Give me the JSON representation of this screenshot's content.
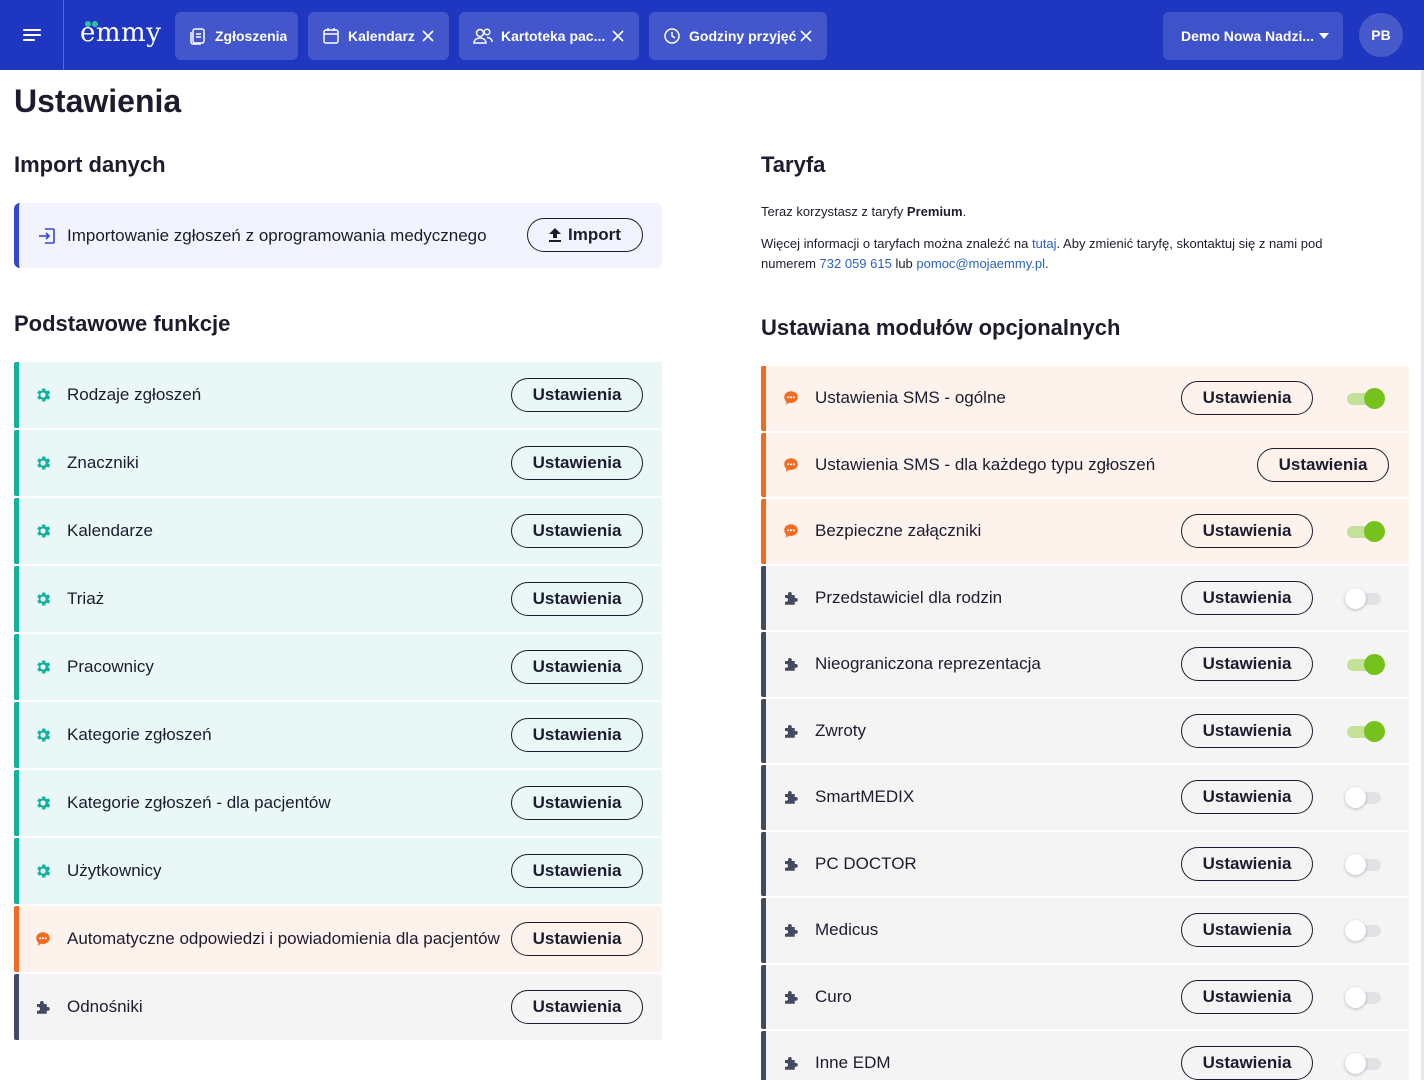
{
  "header": {
    "logo_text": "emmy",
    "tabs": [
      {
        "label": "Zgłoszenia",
        "icon": "document-icon",
        "closable": false
      },
      {
        "label": "Kalendarz",
        "icon": "calendar-icon",
        "closable": true
      },
      {
        "label": "Kartoteka pac...",
        "icon": "users-icon",
        "closable": true
      },
      {
        "label": "Godziny przyjęć",
        "icon": "clock-icon",
        "closable": true
      }
    ],
    "organization": "Demo Nowa Nadzi...",
    "avatar_initials": "PB"
  },
  "page": {
    "title": "Ustawienia"
  },
  "import_section": {
    "title": "Import danych",
    "text": "Importowanie zgłoszeń z oprogramowania medycznego",
    "button_label": "Import"
  },
  "tariff_section": {
    "title": "Taryfa",
    "line1_prefix": "Teraz korzystasz z taryfy ",
    "plan_name": "Premium",
    "line1_suffix": ".",
    "line2_prefix": "Więcej informacji o taryfach można znaleźć na ",
    "link_text": "tutaj",
    "line2_middle": ". Aby zmienić taryfę, skontaktuj się z nami pod",
    "line3_prefix": "numerem ",
    "phone": "732 059 615",
    "line3_middle": " lub ",
    "email": "pomoc@mojaemmy.pl",
    "line3_suffix": "."
  },
  "basic_section": {
    "title": "Podstawowe funkcje",
    "button_label": "Ustawienia",
    "items": [
      {
        "label": "Rodzaje zgłoszeń",
        "type": "teal",
        "icon": "gear-icon"
      },
      {
        "label": "Znaczniki",
        "type": "teal",
        "icon": "gear-icon"
      },
      {
        "label": "Kalendarze",
        "type": "teal",
        "icon": "gear-icon"
      },
      {
        "label": "Triaż",
        "type": "teal",
        "icon": "gear-icon"
      },
      {
        "label": "Pracownicy",
        "type": "teal",
        "icon": "gear-icon"
      },
      {
        "label": "Kategorie zgłoszeń",
        "type": "teal",
        "icon": "gear-icon"
      },
      {
        "label": "Kategorie zgłoszeń - dla pacjentów",
        "type": "teal",
        "icon": "gear-icon"
      },
      {
        "label": "Użytkownicy",
        "type": "teal",
        "icon": "gear-icon"
      },
      {
        "label": "Automatyczne odpowiedzi i powiadomienia dla pacjentów",
        "type": "orange",
        "icon": "chat-icon"
      },
      {
        "label": "Odnośniki",
        "type": "slate",
        "icon": "puzzle-icon"
      }
    ]
  },
  "optional_section": {
    "title": "Ustawiana modułów opcjonalnych",
    "button_label": "Ustawienia",
    "items": [
      {
        "label": "Ustawienia SMS - ogólne",
        "type": "orange",
        "icon": "chat-icon",
        "toggle": true
      },
      {
        "label": "Ustawienia SMS - dla każdego typu zgłoszeń",
        "type": "orange",
        "icon": "chat-icon",
        "toggle": null
      },
      {
        "label": "Bezpieczne załączniki",
        "type": "orange",
        "icon": "chat-icon",
        "toggle": true
      },
      {
        "label": "Przedstawiciel dla rodzin",
        "type": "slate",
        "icon": "puzzle-icon",
        "toggle": false
      },
      {
        "label": "Nieograniczona reprezentacja",
        "type": "slate",
        "icon": "puzzle-icon",
        "toggle": true
      },
      {
        "label": "Zwroty",
        "type": "slate",
        "icon": "puzzle-icon",
        "toggle": true
      },
      {
        "label": "SmartMEDIX",
        "type": "slate",
        "icon": "puzzle-icon",
        "toggle": false
      },
      {
        "label": "PC DOCTOR",
        "type": "slate",
        "icon": "puzzle-icon",
        "toggle": false
      },
      {
        "label": "Medicus",
        "type": "slate",
        "icon": "puzzle-icon",
        "toggle": false
      },
      {
        "label": "Curo",
        "type": "slate",
        "icon": "puzzle-icon",
        "toggle": false
      },
      {
        "label": "Inne EDM",
        "type": "slate",
        "icon": "puzzle-icon",
        "toggle": false
      }
    ]
  },
  "colors": {
    "header_bg": "#1f36c1",
    "teal_accent": "#12b09e",
    "orange_accent": "#f26b21",
    "slate_accent": "#454a63",
    "toggle_on": "#74c21b",
    "link": "#2c62c6"
  }
}
